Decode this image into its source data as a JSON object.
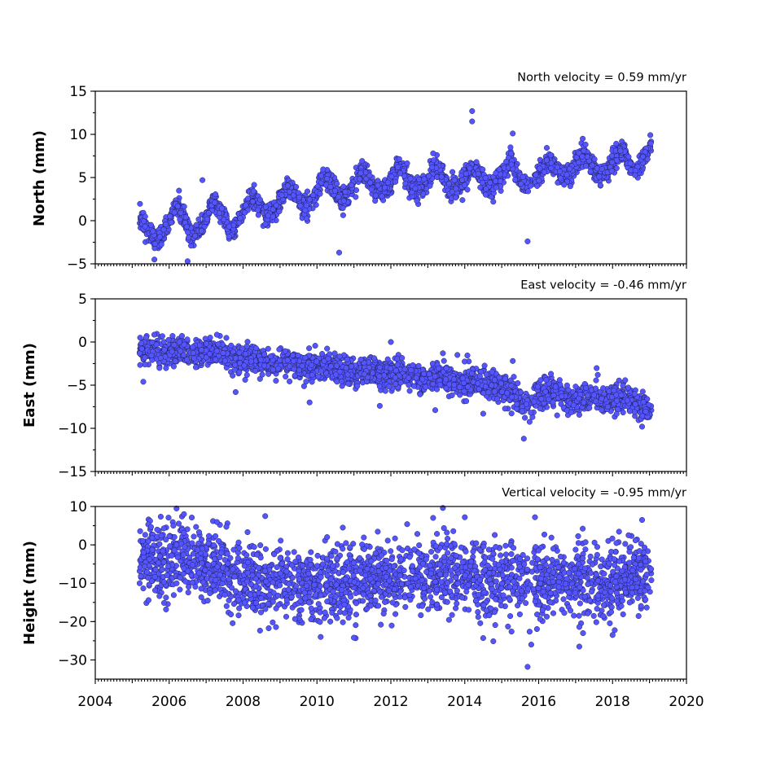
{
  "chart_data": {
    "type": "scatter",
    "x_axis": {
      "label": "",
      "range": [
        2004,
        2020
      ],
      "ticks": [
        2004,
        2006,
        2008,
        2010,
        2012,
        2014,
        2016,
        2018,
        2020
      ]
    },
    "marker_color": "#5555ff",
    "marker_edge_color": "#1a1a4a",
    "panels": [
      {
        "id": "north",
        "title": "North velocity = 0.59 mm/yr",
        "ylabel": "North (mm)",
        "ylim": [
          -5,
          15
        ],
        "yticks": [
          -5,
          0,
          5,
          10,
          15
        ],
        "velocity_mm_per_yr": 0.59,
        "trend_points": [
          [
            2005.2,
            0.0
          ],
          [
            2005.6,
            -2.5
          ],
          [
            2006.2,
            1.5
          ],
          [
            2006.6,
            -2.0
          ],
          [
            2007.2,
            2.0
          ],
          [
            2007.6,
            -1.0
          ],
          [
            2008.2,
            2.5
          ],
          [
            2008.6,
            0.5
          ],
          [
            2009.2,
            3.5
          ],
          [
            2009.6,
            1.5
          ],
          [
            2010.2,
            5.0
          ],
          [
            2010.6,
            2.5
          ],
          [
            2011.2,
            5.5
          ],
          [
            2011.6,
            3.0
          ],
          [
            2012.2,
            6.0
          ],
          [
            2012.6,
            3.5
          ],
          [
            2013.2,
            6.0
          ],
          [
            2013.6,
            3.5
          ],
          [
            2014.2,
            6.0
          ],
          [
            2014.6,
            4.0
          ],
          [
            2015.2,
            6.5
          ],
          [
            2015.6,
            4.0
          ],
          [
            2016.2,
            6.5
          ],
          [
            2016.6,
            5.0
          ],
          [
            2017.2,
            7.5
          ],
          [
            2017.6,
            5.0
          ],
          [
            2018.2,
            8.0
          ],
          [
            2018.6,
            5.5
          ],
          [
            2019.0,
            9.0
          ]
        ],
        "seasonal_amplitude": 1.7,
        "scatter": 0.6,
        "outliers": [
          [
            2014.2,
            12.7
          ],
          [
            2014.2,
            11.5
          ],
          [
            2015.3,
            10.1
          ],
          [
            2006.9,
            4.7
          ],
          [
            2010.6,
            -3.7
          ],
          [
            2006.5,
            -4.7
          ],
          [
            2015.7,
            -2.4
          ],
          [
            2005.6,
            -4.5
          ]
        ]
      },
      {
        "id": "east",
        "title": "East velocity = -0.46 mm/yr",
        "ylabel": "East (mm)",
        "ylim": [
          -15,
          5
        ],
        "yticks": [
          -15,
          -10,
          -5,
          0,
          5
        ],
        "velocity_mm_per_yr": -0.46,
        "trend_points": [
          [
            2005.2,
            -1.0
          ],
          [
            2006.0,
            -1.3
          ],
          [
            2007.0,
            -1.0
          ],
          [
            2008.0,
            -2.0
          ],
          [
            2009.0,
            -2.5
          ],
          [
            2010.0,
            -2.8
          ],
          [
            2011.0,
            -3.5
          ],
          [
            2012.0,
            -3.5
          ],
          [
            2013.0,
            -4.3
          ],
          [
            2014.0,
            -4.5
          ],
          [
            2015.0,
            -5.0
          ],
          [
            2015.6,
            -7.5
          ],
          [
            2016.0,
            -6.0
          ],
          [
            2017.0,
            -6.5
          ],
          [
            2018.0,
            -6.5
          ],
          [
            2019.0,
            -7.5
          ]
        ],
        "seasonal_amplitude": 0.7,
        "scatter": 0.8,
        "outliers": [
          [
            2005.3,
            -4.6
          ],
          [
            2007.8,
            -5.8
          ],
          [
            2009.8,
            -7.0
          ],
          [
            2011.7,
            -7.4
          ],
          [
            2013.2,
            -7.9
          ],
          [
            2014.5,
            -8.3
          ],
          [
            2015.6,
            -11.2
          ],
          [
            2016.5,
            -8.5
          ],
          [
            2018.8,
            -9.8
          ],
          [
            2012.0,
            0.0
          ],
          [
            2013.8,
            -1.5
          ],
          [
            2015.3,
            -2.2
          ],
          [
            2017.6,
            -3.8
          ]
        ]
      },
      {
        "id": "height",
        "title": "Vertical velocity = -0.95 mm/yr",
        "ylabel": "Height (mm)",
        "ylim": [
          -35,
          10
        ],
        "yticks": [
          -30,
          -20,
          -10,
          0,
          10
        ],
        "velocity_mm_per_yr": -0.95,
        "trend_points": [
          [
            2005.2,
            -5.0
          ],
          [
            2006.5,
            -3.0
          ],
          [
            2008.0,
            -9.0
          ],
          [
            2010.0,
            -11.0
          ],
          [
            2012.0,
            -8.5
          ],
          [
            2014.0,
            -8.0
          ],
          [
            2016.0,
            -9.5
          ],
          [
            2018.0,
            -10.0
          ],
          [
            2019.0,
            -7.0
          ]
        ],
        "seasonal_amplitude": 2.0,
        "scatter": 4.8,
        "outliers": [
          [
            2006.2,
            9.5
          ],
          [
            2006.4,
            8.0
          ],
          [
            2008.6,
            7.5
          ],
          [
            2010.7,
            4.5
          ],
          [
            2014.0,
            7.2
          ],
          [
            2015.9,
            7.2
          ],
          [
            2018.8,
            6.5
          ],
          [
            2010.1,
            -24.0
          ],
          [
            2011.0,
            -24.2
          ],
          [
            2014.5,
            -24.3
          ],
          [
            2015.8,
            -26.0
          ],
          [
            2015.7,
            -31.8
          ],
          [
            2017.1,
            -26.5
          ],
          [
            2017.2,
            -23.0
          ],
          [
            2018.0,
            -23.5
          ]
        ]
      }
    ]
  }
}
